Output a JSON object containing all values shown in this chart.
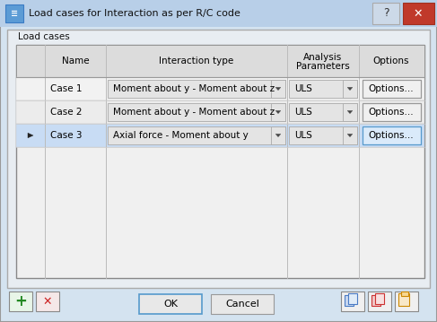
{
  "title": "Load cases for Interaction as per R/C code",
  "group_label": "Load cases",
  "rows": [
    {
      "selector": false,
      "name": "Case 1",
      "interaction": "Moment about y - Moment about z",
      "analysis": "ULS",
      "selected": false
    },
    {
      "selector": false,
      "name": "Case 2",
      "interaction": "Moment about y - Moment about z",
      "analysis": "ULS",
      "selected": false
    },
    {
      "selector": true,
      "name": "Case 3",
      "interaction": "Axial force - Moment about y",
      "analysis": "ULS",
      "selected": true
    }
  ],
  "dialog_bg": "#d4e3f0",
  "titlebar_bg": "#b8cfe8",
  "groupbox_bg": "#e8edf2",
  "table_bg": "#ebebeb",
  "header_bg": "#dcdcdc",
  "row_bg": "#f2f2f2",
  "row_alt_bg": "#ececec",
  "row_selected_bg": "#c8dcf4",
  "cell_bg": "#e4e4e4",
  "options_btn_bg": "#f0f0f0",
  "options_selected_bg": "#daeafa",
  "btn_bg": "#e8e8e8",
  "ok_border": "#5599cc",
  "border_color": "#999999",
  "text_color": "#000000",
  "btn_ok": "OK",
  "btn_cancel": "Cancel"
}
